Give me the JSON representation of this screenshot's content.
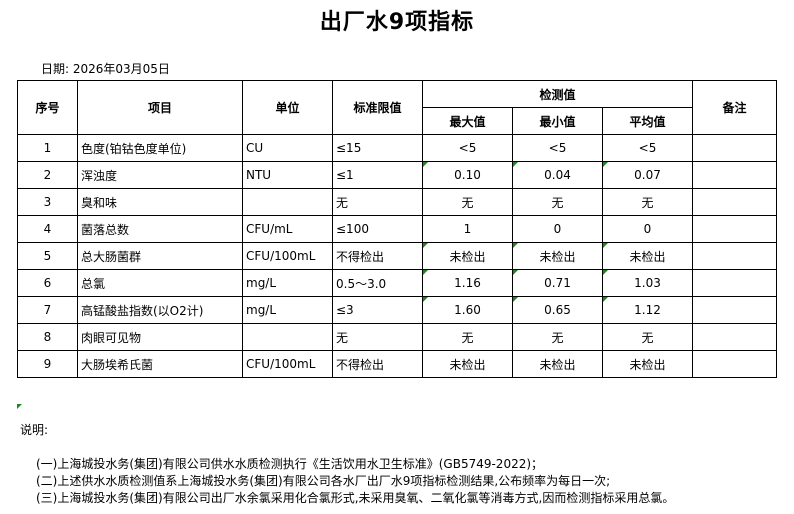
{
  "title": "出厂水9项指标",
  "date": "日期: 2026年03月05日",
  "headers": {
    "no": "序号",
    "item": "项目",
    "unit": "单位",
    "limit": "标准限值",
    "measured": "检测值",
    "max": "最大值",
    "min": "最小值",
    "avg": "平均值",
    "remark": "备注"
  },
  "rows": [
    {
      "no": "1",
      "item": "色度(铂钴色度单位)",
      "unit": "CU",
      "limit": "≤15",
      "max": "<5",
      "min": "<5",
      "avg": "<5",
      "remark": ""
    },
    {
      "no": "2",
      "item": "浑浊度",
      "unit": "NTU",
      "limit": "≤1",
      "max": "0.10",
      "min": "0.04",
      "avg": "0.07",
      "remark": ""
    },
    {
      "no": "3",
      "item": "臭和味",
      "unit": "",
      "limit": "无",
      "max": "无",
      "min": "无",
      "avg": "无",
      "remark": ""
    },
    {
      "no": "4",
      "item": "菌落总数",
      "unit": "CFU/mL",
      "limit": "≤100",
      "max": "1",
      "min": "0",
      "avg": "0",
      "remark": ""
    },
    {
      "no": "5",
      "item": "总大肠菌群",
      "unit": "CFU/100mL",
      "limit": "不得检出",
      "max": "未检出",
      "min": "未检出",
      "avg": "未检出",
      "remark": ""
    },
    {
      "no": "6",
      "item": "总氯",
      "unit": "mg/L",
      "limit": "0.5～3.0",
      "max": "1.16",
      "min": "0.71",
      "avg": "1.03",
      "remark": ""
    },
    {
      "no": "7",
      "item": "高锰酸盐指数(以O2计)",
      "unit": "mg/L",
      "limit": "≤3",
      "max": "1.60",
      "min": "0.65",
      "avg": "1.12",
      "remark": ""
    },
    {
      "no": "8",
      "item": "肉眼可见物",
      "unit": "",
      "limit": "无",
      "max": "无",
      "min": "无",
      "avg": "无",
      "remark": ""
    },
    {
      "no": "9",
      "item": "大肠埃希氏菌",
      "unit": "CFU/100mL",
      "limit": "不得检出",
      "max": "未检出",
      "min": "未检出",
      "avg": "未检出",
      "remark": ""
    }
  ],
  "notes": {
    "heading": "说明:",
    "items": [
      "(一)上海城投水务(集团)有限公司供水水质检测执行《生活饮用水卫生标准》(GB5749-2022)；",
      "(二)上述供水水质检测值系上海城投水务(集团)有限公司各水厂出厂水9项指标检测结果,公布频率为每日一次;",
      "(三)上海城投水务(集团)有限公司出厂水余氯采用化合氯形式,未采用臭氧、二氧化氯等消毒方式,因而检测指标采用总氯。"
    ]
  },
  "colors": {
    "indicator": "#1a8a1a"
  }
}
